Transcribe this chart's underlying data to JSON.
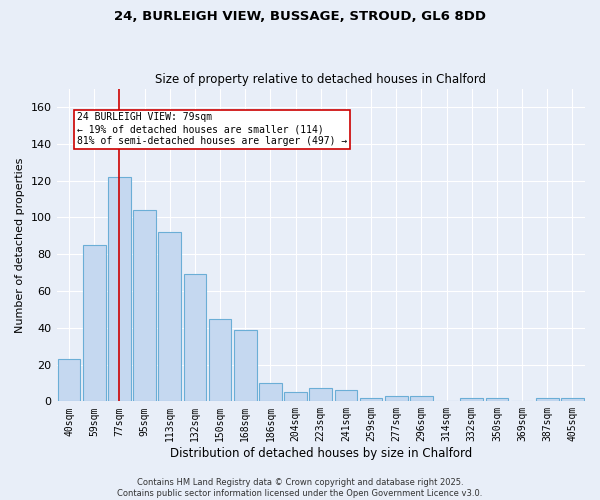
{
  "title_line1": "24, BURLEIGH VIEW, BUSSAGE, STROUD, GL6 8DD",
  "title_line2": "Size of property relative to detached houses in Chalford",
  "xlabel": "Distribution of detached houses by size in Chalford",
  "ylabel": "Number of detached properties",
  "categories": [
    "40sqm",
    "59sqm",
    "77sqm",
    "95sqm",
    "113sqm",
    "132sqm",
    "150sqm",
    "168sqm",
    "186sqm",
    "204sqm",
    "223sqm",
    "241sqm",
    "259sqm",
    "277sqm",
    "296sqm",
    "314sqm",
    "332sqm",
    "350sqm",
    "369sqm",
    "387sqm",
    "405sqm"
  ],
  "values": [
    23,
    85,
    122,
    104,
    92,
    69,
    45,
    39,
    10,
    5,
    7,
    6,
    2,
    3,
    3,
    0,
    2,
    2,
    0,
    2,
    2
  ],
  "bar_color": "#c5d8f0",
  "bar_edge_color": "#6baed6",
  "vline_x": 2,
  "vline_color": "#cc0000",
  "annotation_text": "24 BURLEIGH VIEW: 79sqm\n← 19% of detached houses are smaller (114)\n81% of semi-detached houses are larger (497) →",
  "annotation_box_color": "#ffffff",
  "annotation_box_edge_color": "#cc0000",
  "ylim": [
    0,
    170
  ],
  "yticks": [
    0,
    20,
    40,
    60,
    80,
    100,
    120,
    140,
    160
  ],
  "background_color": "#e8eef8",
  "footer_text": "Contains HM Land Registry data © Crown copyright and database right 2025.\nContains public sector information licensed under the Open Government Licence v3.0.",
  "grid_color": "#ffffff"
}
